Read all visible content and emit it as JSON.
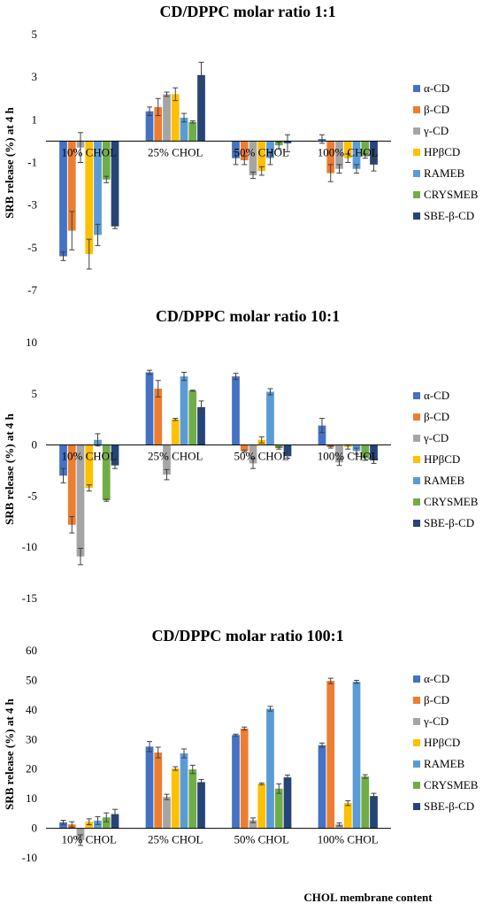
{
  "colors": {
    "alpha_cd": "#4472C4",
    "beta_cd": "#ED7D31",
    "gamma_cd": "#A5A5A5",
    "hpbcd": "#FFC000",
    "rameb": "#5B9BD5",
    "crysmeb": "#70AD47",
    "sbe_b_cd": "#264478"
  },
  "chart_data": [
    {
      "type": "bar",
      "title": "CD/DPPC molar ratio 1:1",
      "xlabel": "",
      "ylabel": "SRB release (%) at 4 h",
      "ylim": [
        -7,
        5
      ],
      "yticks": [
        5,
        3,
        1,
        -1,
        -3,
        -5,
        -7
      ],
      "categories": [
        "10% CHOL",
        "25% CHOL",
        "50% CHOL",
        "100% CHOL"
      ],
      "legend_position": "right",
      "series": [
        {
          "name": "α-CD",
          "color": "#4472C4",
          "values": [
            -5.4,
            1.4,
            -0.8,
            0.1
          ],
          "errors": [
            0.2,
            0.2,
            0.3,
            0.2
          ]
        },
        {
          "name": "β-CD",
          "color": "#ED7D31",
          "values": [
            -4.2,
            1.6,
            -0.9,
            -1.5
          ],
          "errors": [
            0.9,
            0.4,
            0.2,
            0.4
          ]
        },
        {
          "name": "γ-CD",
          "color": "#A5A5A5",
          "values": [
            -0.3,
            2.2,
            -1.6,
            -1.3
          ],
          "errors": [
            0.7,
            0.1,
            0.15,
            0.2
          ]
        },
        {
          "name": "HPβCD",
          "color": "#FFC000",
          "values": [
            -5.3,
            2.2,
            -1.4,
            -0.8
          ],
          "errors": [
            0.7,
            0.3,
            0.2,
            0.2
          ]
        },
        {
          "name": "RAMEB",
          "color": "#5B9BD5",
          "values": [
            -4.4,
            1.1,
            -0.8,
            -1.3
          ],
          "errors": [
            0.5,
            0.2,
            0.3,
            0.2
          ]
        },
        {
          "name": "CRYSMEB",
          "color": "#70AD47",
          "values": [
            -1.8,
            0.9,
            -0.2,
            -0.7
          ],
          "errors": [
            0.15,
            0.05,
            0.15,
            0.1
          ]
        },
        {
          "name": "SBE-β-CD",
          "color": "#264478",
          "values": [
            -4.0,
            3.1,
            -0.1,
            -1.1
          ],
          "errors": [
            0.1,
            0.6,
            0.4,
            0.3
          ]
        }
      ]
    },
    {
      "type": "bar",
      "title": "CD/DPPC molar ratio 10:1",
      "xlabel": "",
      "ylabel": "SRB release (%) at 4 h",
      "ylim": [
        -15,
        10
      ],
      "yticks": [
        10,
        5,
        0,
        -5,
        -10,
        -15
      ],
      "categories": [
        "10% CHOL",
        "25% CHOL",
        "50% CHOL",
        "100% CHOL"
      ],
      "legend_position": "right",
      "series": [
        {
          "name": "α-CD",
          "color": "#4472C4",
          "values": [
            -3.0,
            7.1,
            6.7,
            1.9
          ],
          "errors": [
            0.7,
            0.2,
            0.3,
            0.7
          ]
        },
        {
          "name": "β-CD",
          "color": "#ED7D31",
          "values": [
            -7.8,
            5.5,
            -0.6,
            -0.2
          ],
          "errors": [
            0.8,
            0.8,
            0.1,
            0.1
          ]
        },
        {
          "name": "γ-CD",
          "color": "#A5A5A5",
          "values": [
            -10.9,
            -2.9,
            -1.8,
            -1.7
          ],
          "errors": [
            0.8,
            0.5,
            0.5,
            0.3
          ]
        },
        {
          "name": "HPβCD",
          "color": "#FFC000",
          "values": [
            -4.2,
            2.5,
            0.5,
            -0.2
          ],
          "errors": [
            0.3,
            0.1,
            0.3,
            0.2
          ]
        },
        {
          "name": "RAMEB",
          "color": "#5B9BD5",
          "values": [
            0.5,
            6.7,
            5.2,
            -0.6
          ],
          "errors": [
            0.6,
            0.4,
            0.3,
            0.3
          ]
        },
        {
          "name": "CRYSMEB",
          "color": "#70AD47",
          "values": [
            -5.4,
            5.3,
            -0.3,
            -1.3
          ],
          "errors": [
            0.1,
            0.05,
            0.1,
            0.2
          ]
        },
        {
          "name": "SBE-β-CD",
          "color": "#264478",
          "values": [
            -2.0,
            3.7,
            -1.1,
            -1.5
          ],
          "errors": [
            0.3,
            0.6,
            0.2,
            0.3
          ]
        }
      ]
    },
    {
      "type": "bar",
      "title": "CD/DPPC molar ratio 100:1",
      "xlabel": "CHOL membrane content",
      "ylabel": "SRB release (%) at 4 h",
      "ylim": [
        -10,
        60
      ],
      "yticks": [
        60,
        50,
        40,
        30,
        20,
        10,
        0,
        -10
      ],
      "categories": [
        "10% CHOL",
        "25% CHOL",
        "50% CHOL",
        "100% CHOL"
      ],
      "legend_position": "right",
      "series": [
        {
          "name": "α-CD",
          "color": "#4472C4",
          "values": [
            2.0,
            27.6,
            31.5,
            28.1
          ],
          "errors": [
            0.7,
            1.7,
            0.3,
            0.7
          ]
        },
        {
          "name": "β-CD",
          "color": "#ED7D31",
          "values": [
            1.3,
            25.6,
            33.7,
            49.8
          ],
          "errors": [
            0.9,
            1.8,
            0.5,
            0.9
          ]
        },
        {
          "name": "γ-CD",
          "color": "#A5A5A5",
          "values": [
            -4.0,
            10.6,
            2.7,
            1.3
          ],
          "errors": [
            1.8,
            0.9,
            0.8,
            0.5
          ]
        },
        {
          "name": "HPβCD",
          "color": "#FFC000",
          "values": [
            2.2,
            20.2,
            15.0,
            8.5
          ],
          "errors": [
            1.0,
            0.6,
            0.3,
            0.8
          ]
        },
        {
          "name": "RAMEB",
          "color": "#5B9BD5",
          "values": [
            2.6,
            25.3,
            40.4,
            49.5
          ],
          "errors": [
            1.3,
            1.5,
            0.8,
            0.5
          ]
        },
        {
          "name": "CRYSMEB",
          "color": "#70AD47",
          "values": [
            3.7,
            19.9,
            13.4,
            17.5
          ],
          "errors": [
            1.5,
            1.4,
            1.6,
            0.6
          ]
        },
        {
          "name": "SBE-β-CD",
          "color": "#264478",
          "values": [
            4.8,
            15.6,
            17.2,
            10.9
          ],
          "errors": [
            1.6,
            0.9,
            0.8,
            0.9
          ]
        }
      ]
    }
  ]
}
